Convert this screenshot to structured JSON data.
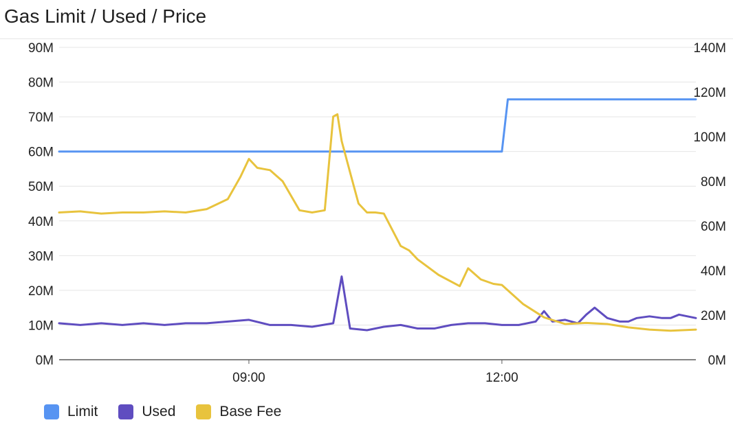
{
  "chart_data": {
    "type": "line",
    "title": "Gas Limit / Used / Price",
    "x_ticks": [
      "09:00",
      "12:00"
    ],
    "x_range_hours": [
      6.75,
      14.3
    ],
    "y_left": {
      "range": [
        0,
        90000000
      ],
      "ticks": [
        "0M",
        "10M",
        "20M",
        "30M",
        "40M",
        "50M",
        "60M",
        "70M",
        "80M",
        "90M"
      ]
    },
    "y_right": {
      "range": [
        0,
        140000000
      ],
      "ticks": [
        "0M",
        "20M",
        "40M",
        "60M",
        "80M",
        "100M",
        "120M",
        "140M"
      ]
    },
    "grid": true,
    "legend_position": "bottom-left",
    "series": [
      {
        "name": "Limit",
        "axis": "left",
        "color": "#5794f2",
        "x": [
          6.75,
          12.0,
          12.07,
          14.3
        ],
        "y": [
          60000000,
          60000000,
          75000000,
          75000000
        ]
      },
      {
        "name": "Used",
        "axis": "left",
        "color": "#5f4dc0",
        "x": [
          6.75,
          7.0,
          7.25,
          7.5,
          7.75,
          8.0,
          8.25,
          8.5,
          8.75,
          9.0,
          9.25,
          9.5,
          9.75,
          10.0,
          10.1,
          10.2,
          10.4,
          10.6,
          10.8,
          11.0,
          11.2,
          11.4,
          11.6,
          11.8,
          12.0,
          12.2,
          12.4,
          12.5,
          12.6,
          12.75,
          12.9,
          13.0,
          13.1,
          13.25,
          13.4,
          13.5,
          13.6,
          13.75,
          13.9,
          14.0,
          14.1,
          14.2,
          14.3
        ],
        "y": [
          10500000,
          10000000,
          10500000,
          10000000,
          10500000,
          10000000,
          10500000,
          10500000,
          11000000,
          11500000,
          10000000,
          10000000,
          9500000,
          10500000,
          24000000,
          9000000,
          8500000,
          9500000,
          10000000,
          9000000,
          9000000,
          10000000,
          10500000,
          10500000,
          10000000,
          10000000,
          11000000,
          14000000,
          11000000,
          11500000,
          10500000,
          13000000,
          15000000,
          12000000,
          11000000,
          11000000,
          12000000,
          12500000,
          12000000,
          12000000,
          13000000,
          12500000,
          12000000
        ]
      },
      {
        "name": "Base Fee",
        "axis": "right",
        "color": "#e8c33d",
        "x": [
          6.75,
          7.0,
          7.25,
          7.5,
          7.75,
          8.0,
          8.25,
          8.5,
          8.75,
          8.9,
          9.0,
          9.1,
          9.25,
          9.4,
          9.6,
          9.75,
          9.9,
          10.0,
          10.05,
          10.1,
          10.2,
          10.3,
          10.4,
          10.5,
          10.6,
          10.8,
          10.9,
          11.0,
          11.25,
          11.5,
          11.6,
          11.75,
          11.9,
          12.0,
          12.25,
          12.5,
          12.75,
          13.0,
          13.25,
          13.5,
          13.75,
          14.0,
          14.3
        ],
        "y": [
          66000000,
          66500000,
          65500000,
          66000000,
          66000000,
          66500000,
          66000000,
          67500000,
          72000000,
          82000000,
          90000000,
          86000000,
          85000000,
          80000000,
          67000000,
          66000000,
          67000000,
          109000000,
          110000000,
          98000000,
          84000000,
          70000000,
          66000000,
          66000000,
          65500000,
          51000000,
          49000000,
          45000000,
          38000000,
          33000000,
          41000000,
          36000000,
          34000000,
          33500000,
          25000000,
          19000000,
          16000000,
          16500000,
          16000000,
          14500000,
          13500000,
          13000000,
          13500000
        ]
      }
    ]
  }
}
